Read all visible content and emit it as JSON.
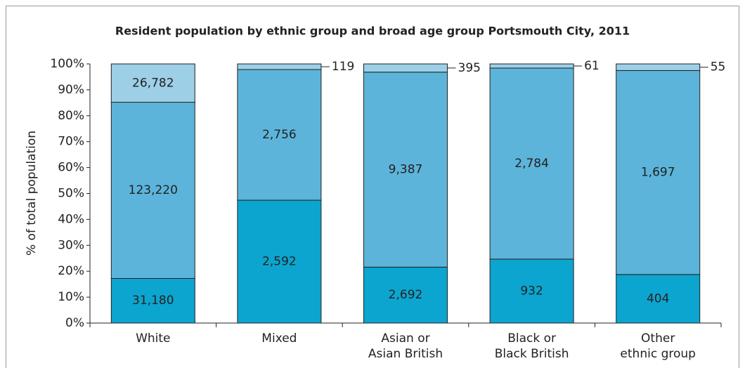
{
  "chart_data": {
    "type": "bar",
    "stacking": "percent",
    "title": "Resident population by ethnic group and broad age group Portsmouth City, 2011",
    "y_label": "% of total population",
    "categories": [
      [
        "White"
      ],
      [
        "Mixed"
      ],
      [
        "Asian or",
        "Asian British"
      ],
      [
        "Black or",
        "Black British"
      ],
      [
        "Other",
        "ethnic group"
      ]
    ],
    "series": [
      {
        "color": "#0ba5d0",
        "values": [
          31180,
          2592,
          2692,
          932,
          404
        ],
        "value_labels": [
          "31,180",
          "2,592",
          "2,692",
          "932",
          "404"
        ]
      },
      {
        "color": "#5db4da",
        "values": [
          123220,
          2756,
          9387,
          2784,
          1697
        ],
        "value_labels": [
          "123,220",
          "2,756",
          "9,387",
          "2,784",
          "1,697"
        ]
      },
      {
        "color": "#9dcfe7",
        "values": [
          26782,
          119,
          395,
          61,
          55
        ],
        "value_labels": [
          "26,782",
          "119",
          "395",
          "61",
          "55"
        ]
      }
    ],
    "ylim": [
      0,
      100
    ],
    "yticks": [
      {
        "value": 0,
        "label": "0%"
      },
      {
        "value": 10,
        "label": "10%"
      },
      {
        "value": 20,
        "label": "20%"
      },
      {
        "value": 30,
        "label": "30%"
      },
      {
        "value": 40,
        "label": "40%"
      },
      {
        "value": 50,
        "label": "50%"
      },
      {
        "value": 60,
        "label": "60%"
      },
      {
        "value": 70,
        "label": "70%"
      },
      {
        "value": 80,
        "label": "80%"
      },
      {
        "value": 90,
        "label": "90%"
      },
      {
        "value": 100,
        "label": "100%"
      }
    ],
    "grid": false
  }
}
